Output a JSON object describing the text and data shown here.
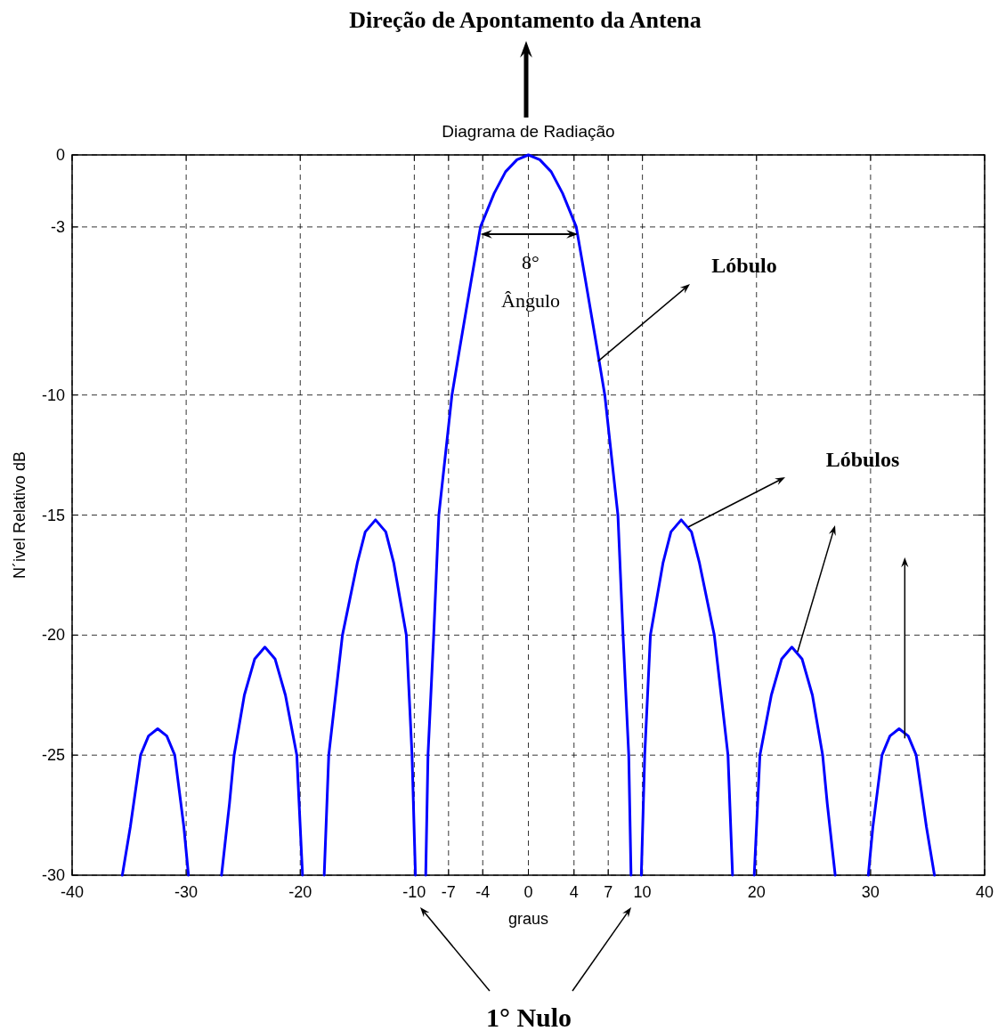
{
  "chart_data": {
    "type": "line",
    "title": "Diagrama de Radiação",
    "xlabel": "graus",
    "ylabel": "N´ivel Relativo dB",
    "annotations": [
      "Direção de Apontamento da Antena",
      "8°",
      "Ângulo",
      "Lóbulo",
      "Lóbulos",
      "1° Nulo"
    ],
    "x": [
      -35.6,
      -34.9,
      -34,
      -33.3,
      -32.5,
      -31.7,
      -31,
      -30.2,
      -29.8,
      -29.7,
      -26.9,
      -26.2,
      -25.8,
      -24.9,
      -24,
      -23.1,
      -22.2,
      -21.3,
      -20.3,
      -20.1,
      -19.8,
      -19.7,
      -17.9,
      -17.5,
      -16.3,
      -15,
      -14.3,
      -13.4,
      -12.5,
      -11.8,
      -10.7,
      -10.2,
      -9.9,
      -9.5,
      -9.0,
      -8.8,
      -8.3,
      -7.85,
      -6.7,
      -6,
      -5,
      -4.2,
      -3,
      -2,
      -1,
      0,
      1,
      2,
      3,
      4.2,
      5,
      6,
      6.7,
      7.85,
      8.3,
      8.8,
      9.0,
      9.5,
      9.9,
      10.2,
      10.7,
      11.8,
      12.5,
      13.4,
      14.3,
      15,
      16.3,
      17.5,
      17.9,
      18.5,
      19.8,
      20.1,
      20.3,
      21.3,
      22.2,
      23.1,
      24,
      24.9,
      25.8,
      26.2,
      26.9,
      27,
      29.8,
      30.2,
      31,
      31.7,
      32.5,
      33.3,
      34,
      34.9,
      35.6
    ],
    "series": [
      {
        "color": "#0000ff",
        "values": [
          -30,
          -28,
          -25,
          -24.2,
          -23.9,
          -24.2,
          -25,
          -28,
          -30,
          null,
          -30,
          -27,
          -25,
          -22.5,
          -21,
          -20.5,
          -21,
          -22.5,
          -25,
          -27,
          -30,
          null,
          -30,
          -25,
          -20,
          -17,
          -15.7,
          -15.2,
          -15.7,
          -17,
          -20,
          -25,
          -30,
          null,
          -30,
          -25,
          -20,
          -15,
          -10,
          -8,
          -5.2,
          -3,
          -1.6,
          -0.7,
          -0.2,
          0,
          -0.2,
          -0.7,
          -1.6,
          -3,
          -5.2,
          -8,
          -10,
          -15,
          -20,
          -25,
          -30,
          null,
          -30,
          -25,
          -20,
          -17,
          -15.7,
          -15.2,
          -15.7,
          -17,
          -20,
          -25,
          -30,
          null,
          -30,
          -27,
          -25,
          -22.5,
          -21,
          -20.5,
          -21,
          -22.5,
          -25,
          -27,
          -30,
          null,
          -30,
          -28,
          -25,
          -24.2,
          -23.9,
          -24.2,
          -25,
          -28,
          -30
        ]
      }
    ],
    "xlim": [
      -40,
      40
    ],
    "xticks": [
      -40,
      -30,
      -20,
      -10,
      -7,
      -4,
      0,
      4,
      7,
      10,
      20,
      30,
      40
    ],
    "ylim": [
      -30,
      0
    ],
    "yticks": [
      0,
      -3,
      -10,
      -15,
      -20,
      -25,
      -30
    ],
    "grid": true,
    "marker": "none",
    "line_style": "solid"
  }
}
